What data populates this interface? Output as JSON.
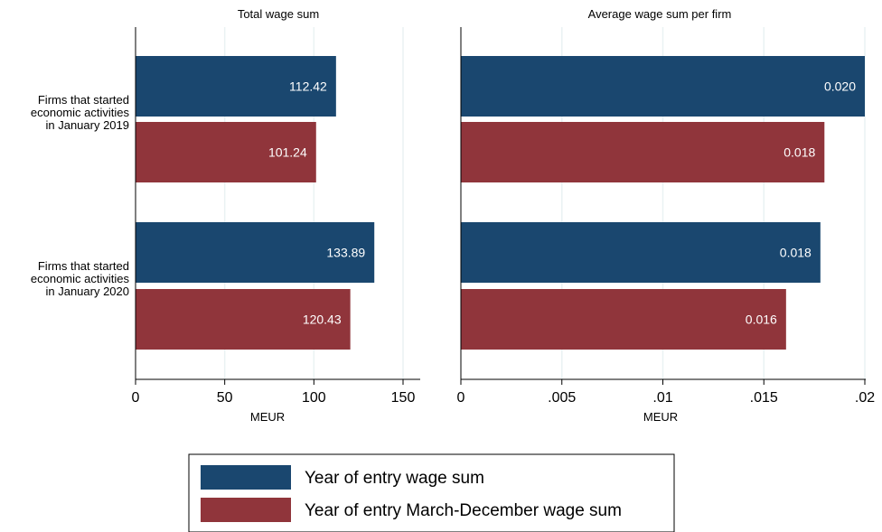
{
  "colors": {
    "series1": "#1a476f",
    "series2": "#90353b",
    "grid": "#eaf2f3"
  },
  "legend": {
    "items": [
      {
        "label": "Year of entry wage sum",
        "color": "#1a476f"
      },
      {
        "label": "Year of entry March-December wage sum",
        "color": "#90353b"
      }
    ]
  },
  "chart_data": [
    {
      "type": "bar",
      "orientation": "horizontal",
      "title": "Total wage sum",
      "xlabel": "MEUR",
      "categories": [
        [
          "Firms that started",
          "economic activities",
          "in January 2019"
        ],
        [
          "Firms that started",
          "economic activities",
          "in January 2020"
        ]
      ],
      "series": [
        {
          "name": "Year of entry wage sum",
          "values": [
            112.42,
            133.89
          ],
          "labels": [
            "112.42",
            "133.89"
          ]
        },
        {
          "name": "Year of entry March-December wage sum",
          "values": [
            101.24,
            120.43
          ],
          "labels": [
            "101.24",
            "120.43"
          ]
        }
      ],
      "xlim": [
        0,
        160
      ],
      "ticks": [
        0,
        50,
        100,
        150
      ],
      "tick_labels": [
        "0",
        "50",
        "100",
        "150"
      ]
    },
    {
      "type": "bar",
      "orientation": "horizontal",
      "title": "Average wage sum per firm",
      "xlabel": "MEUR",
      "categories": [
        [
          "Firms that started",
          "economic activities",
          "in January 2019"
        ],
        [
          "Firms that started",
          "economic activities",
          "in January 2020"
        ]
      ],
      "series": [
        {
          "name": "Year of entry wage sum",
          "values": [
            0.02,
            0.0178
          ],
          "labels": [
            "0.020",
            "0.018"
          ]
        },
        {
          "name": "Year of entry March-December wage sum",
          "values": [
            0.018,
            0.0161
          ],
          "labels": [
            "0.018",
            "0.016"
          ]
        }
      ],
      "xlim": [
        0,
        0.02
      ],
      "ticks": [
        0,
        0.005,
        0.01,
        0.015,
        0.02
      ],
      "tick_labels": [
        "0",
        ".005",
        ".01",
        ".015",
        ".02"
      ]
    }
  ]
}
